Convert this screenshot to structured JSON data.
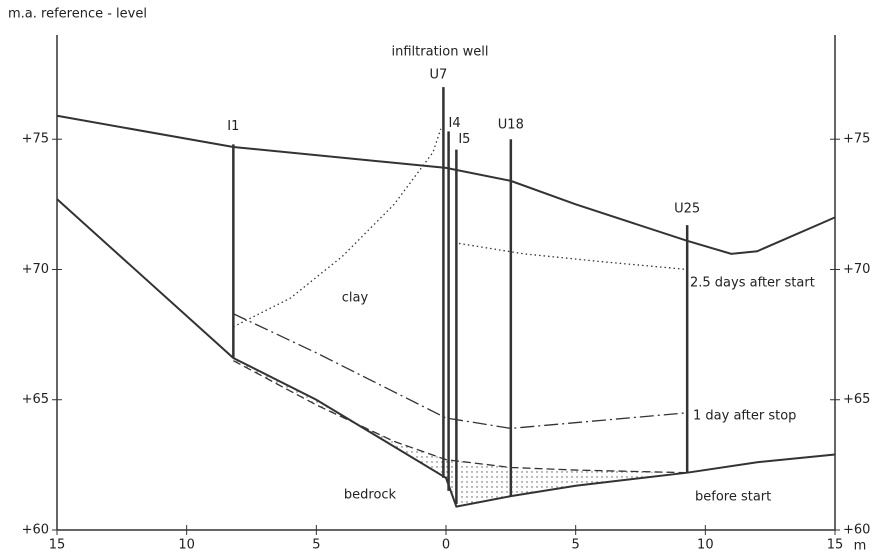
{
  "chart_data": {
    "type": "line",
    "y_axis_label": "m.a. reference - level",
    "x_unit": "m",
    "xlim": [
      -15,
      15
    ],
    "ylim": [
      60,
      79
    ],
    "xticks": [
      {
        "value": -15,
        "label": "15"
      },
      {
        "value": -10,
        "label": "10"
      },
      {
        "value": -5,
        "label": "5"
      },
      0,
      5,
      10,
      15
    ],
    "yticks": [
      {
        "value": 60,
        "label": "+60"
      },
      {
        "value": 65,
        "label": "+65"
      },
      {
        "value": 70,
        "label": "+70"
      },
      {
        "value": 75,
        "label": "+75"
      }
    ],
    "color": "#333333",
    "series": [
      {
        "x": [
          -15,
          -8.2,
          0,
          2.5,
          5,
          9.3,
          11,
          12,
          15
        ],
        "y": [
          75.9,
          74.7,
          73.9,
          73.4,
          72.5,
          71.1,
          70.6,
          70.7,
          72.0
        ],
        "dash": "solid"
      },
      {
        "x": [
          -15,
          -8.2,
          -5,
          0,
          0.4,
          2.5,
          5,
          9.3,
          12,
          15
        ],
        "y": [
          72.7,
          66.6,
          65.0,
          62.0,
          60.9,
          61.3,
          61.7,
          62.2,
          62.6,
          62.9
        ],
        "dash": "solid"
      },
      {
        "name": "2.5 days after start",
        "x": [
          -8.2,
          -6,
          -4,
          -2,
          -0.5,
          -0.2,
          null,
          0.5,
          3,
          6,
          9.3
        ],
        "y": [
          67.8,
          68.9,
          70.5,
          72.5,
          74.5,
          75.4,
          null,
          71.0,
          70.6,
          70.3,
          70.0
        ],
        "dash": "dotted"
      },
      {
        "name": "1 day after stop",
        "x": [
          -8.2,
          -5,
          -2,
          0,
          2.5,
          9.3
        ],
        "y": [
          68.3,
          66.8,
          65.3,
          64.3,
          63.9,
          64.5
        ],
        "dash": "dashdot"
      },
      {
        "name": "before start",
        "x": [
          -8.2,
          -5,
          -2,
          0,
          2.5,
          5,
          9.3
        ],
        "y": [
          66.5,
          64.8,
          63.4,
          62.7,
          62.4,
          62.3,
          62.2
        ],
        "dash": "dashed"
      }
    ],
    "wells": [
      {
        "label": "I1",
        "x": -8.2,
        "top": 74.8,
        "bottom": 66.6
      },
      {
        "label": "U7",
        "x": -0.1,
        "top": 77.0,
        "bottom": 62.0
      },
      {
        "label": "I4",
        "x": 0.1,
        "top": 75.3,
        "bottom": 61.5
      },
      {
        "label": "I5",
        "x": 0.4,
        "top": 74.6,
        "bottom": 61.0
      },
      {
        "label": "U18",
        "x": 2.5,
        "top": 75.0,
        "bottom": 61.3
      },
      {
        "label": "U25",
        "x": 9.3,
        "top": 71.7,
        "bottom": 62.2
      }
    ],
    "annotations": [
      "infiltration well",
      "clay",
      "bedrock"
    ]
  }
}
